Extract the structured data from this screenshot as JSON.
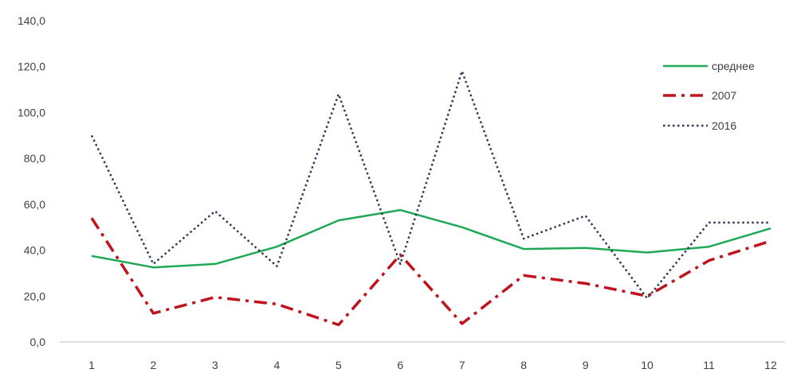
{
  "chart_data": {
    "type": "line",
    "x": [
      "1",
      "2",
      "3",
      "4",
      "5",
      "6",
      "7",
      "8",
      "9",
      "10",
      "11",
      "12"
    ],
    "ylim": [
      0,
      140
    ],
    "yticks": [
      "0,0",
      "20,0",
      "40,0",
      "60,0",
      "80,0",
      "100,0",
      "120,0",
      "140,0"
    ],
    "grid": false,
    "legend_position": "top-right",
    "series": [
      {
        "name": "среднее",
        "color": "#1fa855",
        "style": "solid",
        "values": [
          37.5,
          32.5,
          34,
          41.5,
          53,
          57.5,
          50,
          40.5,
          41,
          39,
          41.5,
          49.5
        ]
      },
      {
        "name": "2007",
        "color": "#c0141c",
        "style": "dashdot",
        "values": [
          54,
          12.5,
          19.5,
          16.5,
          7.5,
          38,
          8,
          29,
          25.5,
          20,
          35.5,
          44
        ]
      },
      {
        "name": "2016",
        "color": "#2e3a55",
        "style": "dotted",
        "values": [
          90,
          34,
          57,
          33,
          108,
          34,
          118,
          45,
          55,
          19,
          52,
          52
        ]
      }
    ]
  }
}
